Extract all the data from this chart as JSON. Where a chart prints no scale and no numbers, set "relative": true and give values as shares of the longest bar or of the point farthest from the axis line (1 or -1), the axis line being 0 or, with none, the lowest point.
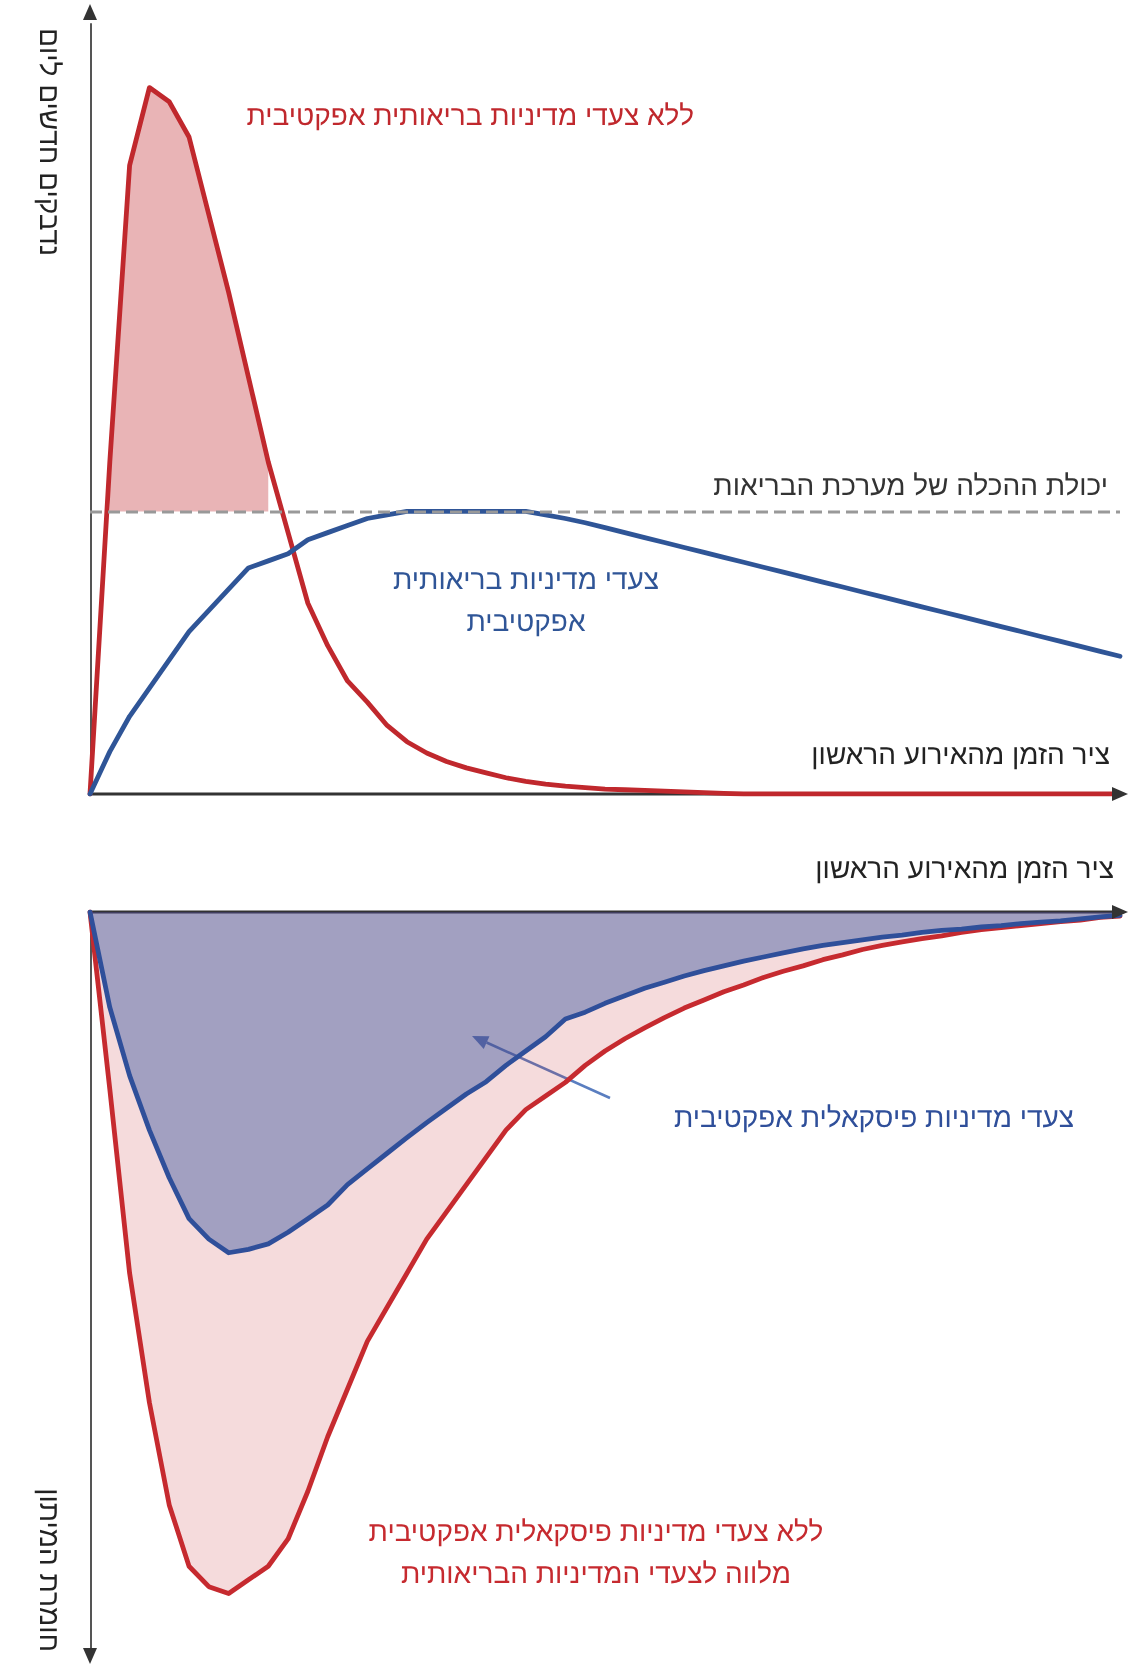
{
  "chart_data": [
    {
      "type": "line",
      "relative": true,
      "marker": "none",
      "xlabel": "ציר הזמן מהאירוע הראשון",
      "ylabel": "נדבקים חדשים ליום",
      "categories": [
        null,
        null,
        null,
        null,
        null,
        null,
        null,
        null,
        null,
        null,
        null,
        null,
        null,
        null,
        null,
        null,
        null,
        null,
        null,
        null,
        null,
        null,
        null,
        null,
        null,
        null,
        null,
        null,
        null,
        null,
        null,
        null,
        null,
        null,
        null,
        null,
        null,
        null,
        null,
        null,
        null,
        null,
        null,
        null,
        null,
        null,
        null,
        null,
        null,
        null,
        null,
        null,
        null
      ],
      "ref_lines": [
        {
          "axis": "y",
          "value": 0.4,
          "label": "יכולת ההכלה של מערכת הבריאות",
          "color": "#999999",
          "line_style": "dashed"
        }
      ],
      "series": [
        {
          "name": "ללא צעדי מדיניות בריאותית אפקטיבית",
          "color": "#c0282d",
          "values": [
            0,
            0.47,
            0.89,
            1.0,
            0.98,
            0.93,
            0.82,
            0.71,
            0.59,
            0.47,
            0.37,
            0.27,
            0.21,
            0.16,
            0.13,
            0.097,
            0.074,
            0.058,
            0.046,
            0.037,
            0.03,
            0.023,
            0.018,
            0.014,
            0.011,
            0.009,
            0.007,
            0.006,
            0.005,
            0.004,
            0.003,
            0.002,
            0.001,
            0,
            0,
            0,
            0,
            0,
            0,
            0,
            0,
            0,
            0,
            0,
            0,
            0,
            0,
            0,
            0,
            0,
            0,
            0,
            0
          ],
          "lower": [
            null,
            0.4,
            0.4,
            0.4,
            0.4,
            0.4,
            0.4,
            0.4,
            0.4,
            0.4,
            null,
            null,
            null,
            null,
            null,
            null,
            null,
            null,
            null,
            null,
            null,
            null,
            null,
            null,
            null,
            null,
            null,
            null,
            null,
            null,
            null,
            null,
            null,
            null,
            null,
            null,
            null,
            null,
            null,
            null,
            null,
            null,
            null,
            null,
            null,
            null,
            null,
            null,
            null,
            null,
            null,
            null,
            null
          ],
          "upper": [
            null,
            0.47,
            0.89,
            1.0,
            0.98,
            0.93,
            0.82,
            0.71,
            0.59,
            0.47,
            null,
            null,
            null,
            null,
            null,
            null,
            null,
            null,
            null,
            null,
            null,
            null,
            null,
            null,
            null,
            null,
            null,
            null,
            null,
            null,
            null,
            null,
            null,
            null,
            null,
            null,
            null,
            null,
            null,
            null,
            null,
            null,
            null,
            null,
            null,
            null,
            null,
            null,
            null,
            null,
            null,
            null,
            null
          ]
        },
        {
          "name": "צעדי מדיניות בריאותית אפקטיבית",
          "color": "#2f5597",
          "values": [
            0,
            0.06,
            0.11,
            0.15,
            0.19,
            0.23,
            0.26,
            0.29,
            0.32,
            0.33,
            0.34,
            0.36,
            0.37,
            0.38,
            0.39,
            0.395,
            0.4,
            0.4,
            0.4,
            0.4,
            0.4,
            0.4,
            0.4,
            0.395,
            0.39,
            0.384,
            0.377,
            0.37,
            0.363,
            0.356,
            0.349,
            0.342,
            0.335,
            0.328,
            0.321,
            0.314,
            0.307,
            0.3,
            0.293,
            0.286,
            0.279,
            0.272,
            0.265,
            0.258,
            0.251,
            0.244,
            0.237,
            0.23,
            0.223,
            0.216,
            0.209,
            0.202,
            0.195
          ]
        }
      ]
    },
    {
      "type": "area",
      "relative": true,
      "marker": "none",
      "xlabel": "ציר הזמן מהאירוע הראשון",
      "ylabel": "חומרת המיתון",
      "categories": [
        null,
        null,
        null,
        null,
        null,
        null,
        null,
        null,
        null,
        null,
        null,
        null,
        null,
        null,
        null,
        null,
        null,
        null,
        null,
        null,
        null,
        null,
        null,
        null,
        null,
        null,
        null,
        null,
        null,
        null,
        null,
        null,
        null,
        null,
        null,
        null,
        null,
        null,
        null,
        null,
        null,
        null,
        null,
        null,
        null,
        null,
        null,
        null,
        null,
        null,
        null,
        null,
        null
      ],
      "series": [
        {
          "name": "ללא צעדי מדיניות פיסקאלית אפקטיבית מלווה לצעדי המדיניות הבריאותית",
          "color": "#c62a2f",
          "values": [
            0,
            -0.26,
            -0.53,
            -0.72,
            -0.87,
            -0.96,
            -0.99,
            -1.0,
            -0.98,
            -0.96,
            -0.92,
            -0.85,
            -0.77,
            -0.7,
            -0.63,
            -0.58,
            -0.53,
            -0.48,
            -0.44,
            -0.4,
            -0.36,
            -0.32,
            -0.29,
            -0.27,
            -0.25,
            -0.225,
            -0.204,
            -0.186,
            -0.17,
            -0.155,
            -0.141,
            -0.129,
            -0.117,
            -0.107,
            -0.096,
            -0.087,
            -0.079,
            -0.07,
            -0.063,
            -0.055,
            -0.049,
            -0.044,
            -0.039,
            -0.035,
            -0.03,
            -0.026,
            -0.023,
            -0.02,
            -0.017,
            -0.014,
            -0.012,
            -0.008,
            -0.006
          ]
        },
        {
          "name": "צעדי מדיניות פיסקאלית אפקטיבית",
          "color": "#2f4f9a",
          "values": [
            0,
            -0.14,
            -0.24,
            -0.32,
            -0.39,
            -0.45,
            -0.48,
            -0.5,
            -0.495,
            -0.487,
            -0.47,
            -0.45,
            -0.43,
            -0.4,
            -0.377,
            -0.354,
            -0.331,
            -0.309,
            -0.288,
            -0.267,
            -0.249,
            -0.225,
            -0.204,
            -0.183,
            -0.157,
            -0.147,
            -0.134,
            -0.123,
            -0.112,
            -0.103,
            -0.094,
            -0.086,
            -0.079,
            -0.072,
            -0.066,
            -0.06,
            -0.054,
            -0.049,
            -0.045,
            -0.041,
            -0.037,
            -0.034,
            -0.03,
            -0.027,
            -0.025,
            -0.022,
            -0.02,
            -0.017,
            -0.015,
            -0.013,
            -0.01,
            -0.007,
            -0.005
          ]
        }
      ]
    }
  ]
}
